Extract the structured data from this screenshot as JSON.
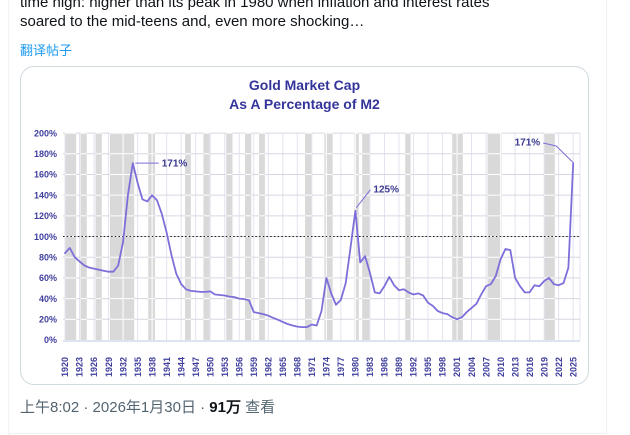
{
  "post": {
    "text_line1": "time high: higher than its peak in 1980 when inflation and interest rates",
    "text_line2": "soared to the mid-teens and, even more shocking…",
    "translate_link": "翻译帖子",
    "time": "上午8:02",
    "separator": "·",
    "date": "2026年1月30日",
    "views_count": "91万",
    "views_label": "查看"
  },
  "chart_data": {
    "type": "line",
    "title_line1": "Gold Market Cap",
    "title_line2": "As A Percentage of M2",
    "start_year": 1920,
    "end_year": 2025,
    "values": [
      84,
      89,
      80,
      76,
      72,
      70,
      69,
      68,
      67,
      66,
      66,
      72,
      95,
      140,
      171,
      152,
      136,
      134,
      140,
      135,
      122,
      104,
      82,
      64,
      54,
      49,
      47.5,
      47,
      46.5,
      46.5,
      47,
      44,
      43.5,
      43,
      42,
      41.5,
      40,
      39.5,
      38.5,
      27,
      26,
      25,
      23.5,
      21.5,
      19.5,
      17.5,
      15.5,
      14,
      13,
      12.5,
      12.5,
      15,
      14,
      28,
      60,
      45,
      34,
      39,
      55,
      90,
      125,
      75,
      81,
      65,
      46,
      45,
      52,
      61,
      53,
      48,
      49,
      46,
      44,
      45,
      43,
      36,
      33,
      28,
      26,
      25,
      22,
      20,
      22,
      27,
      31,
      35,
      44,
      52,
      54,
      62,
      78,
      88,
      87,
      60,
      52,
      46,
      46,
      53,
      52,
      57,
      60,
      54,
      53,
      55,
      70,
      171
    ],
    "x_tick_labels": [
      "1920",
      "1923",
      "1926",
      "1929",
      "1932",
      "1935",
      "1938",
      "1941",
      "1944",
      "1947",
      "1950",
      "1953",
      "1956",
      "1959",
      "1962",
      "1965",
      "1968",
      "1971",
      "1974",
      "1977",
      "1980",
      "1983",
      "1986",
      "1989",
      "1992",
      "1995",
      "1998",
      "2001",
      "2004",
      "2007",
      "2010",
      "2013",
      "2016",
      "2019",
      "2022",
      "2025"
    ],
    "x_tick_step": 3,
    "y_ticks": [
      0,
      20,
      40,
      60,
      80,
      100,
      120,
      140,
      160,
      180,
      200
    ],
    "y_tick_suffix": "%",
    "ylim": [
      0,
      200
    ],
    "grid": true,
    "legend": "none",
    "reference_line": {
      "value": 100,
      "style": "dotted"
    },
    "recession_bands": [
      [
        1920,
        1922.3
      ],
      [
        1923.2,
        1924.5
      ],
      [
        1926.3,
        1927.6
      ],
      [
        1929.3,
        1934.3
      ],
      [
        1937.2,
        1938.6
      ],
      [
        1944.8,
        1946
      ],
      [
        1948.6,
        1949.9
      ],
      [
        1953.3,
        1954.6
      ],
      [
        1957.2,
        1958.5
      ],
      [
        1960.1,
        1961.3
      ],
      [
        1969.6,
        1971
      ],
      [
        1973.6,
        1975.3
      ],
      [
        1979.8,
        1980.7
      ],
      [
        1981.4,
        1983
      ],
      [
        1990.3,
        1991.4
      ],
      [
        2000,
        2002.2
      ],
      [
        2007.3,
        2010.2
      ],
      [
        2019,
        2021.2
      ]
    ],
    "annotations": [
      {
        "text": "171%",
        "year": 1934,
        "value": 171,
        "placement": "right-of-peak"
      },
      {
        "text": "125%",
        "year": 1980,
        "value": 125,
        "placement": "diagonal-upper-right"
      },
      {
        "text": "171%",
        "year": 2025,
        "value": 171,
        "placement": "label-left-leader-down"
      }
    ],
    "colors": {
      "line": "#7C6FD9",
      "recession_band": "#D9D9D9",
      "h_gridline": "#D7D7E4",
      "v_gridline": "#E3E3EF",
      "band_gridline": "#FFFFFF",
      "reference_line": "#1A1A1A",
      "axis_line": "#B9C7E6",
      "axis_text": "#3F3E9E",
      "title_text": "#34349B",
      "annotation_text": "#3A3990"
    }
  }
}
